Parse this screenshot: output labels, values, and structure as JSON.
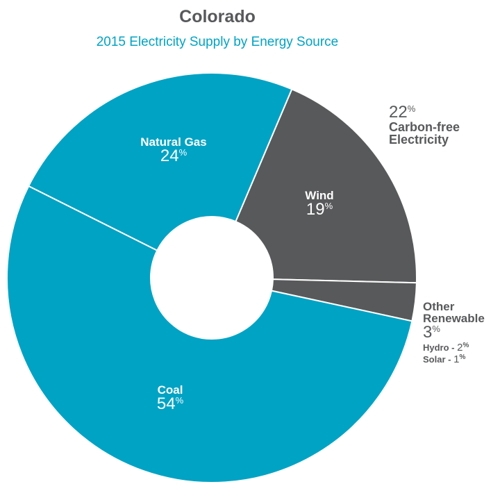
{
  "title": "Colorado",
  "subtitle": "2015 Electricity Supply by Energy Source",
  "chart_data": {
    "type": "pie",
    "donut": true,
    "title": "Colorado",
    "subtitle": "2015 Electricity Supply by Energy Source",
    "slices": [
      {
        "label": "Wind",
        "value": 19,
        "color": "#58595b"
      },
      {
        "label": "Other Renewable",
        "value": 3,
        "color": "#58595b"
      },
      {
        "label": "Coal",
        "value": 54,
        "color": "#00a3c4"
      },
      {
        "label": "Natural Gas",
        "value": 24,
        "color": "#00a3c4"
      }
    ],
    "group_annotation": {
      "value": "22",
      "label": "Carbon-free Electricity"
    },
    "other_breakdown": [
      {
        "label": "Hydro -",
        "value": "2"
      },
      {
        "label": "Solar -",
        "value": "1"
      }
    ],
    "labels": {
      "wind": {
        "name": "Wind",
        "pct": "19"
      },
      "other": {
        "name": "Other Renewable",
        "pct": "3"
      },
      "coal": {
        "name": "Coal",
        "pct": "54"
      },
      "gas": {
        "name": "Natural Gas",
        "pct": "24"
      }
    },
    "percent_sign": "%"
  }
}
